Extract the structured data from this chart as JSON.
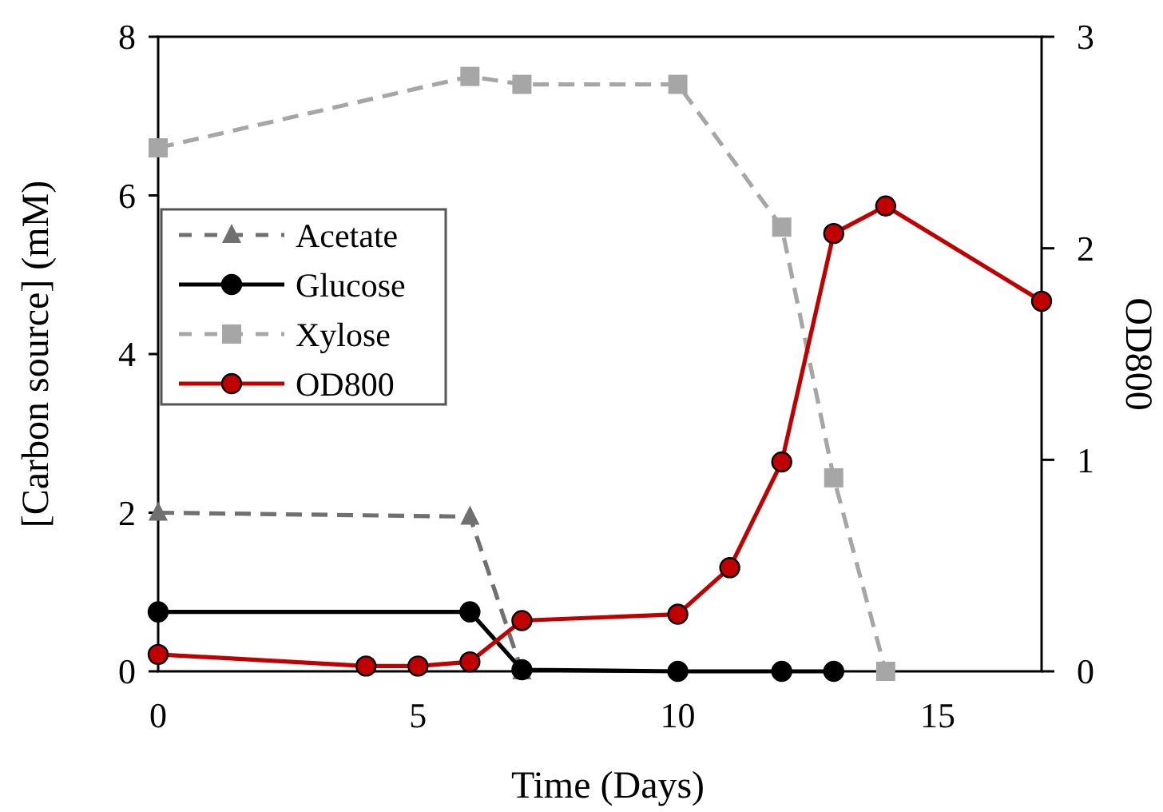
{
  "chart_data": {
    "type": "line",
    "xlabel": "Time (Days)",
    "ylabel": "[Carbon source] (mM)",
    "y2label": "OD800",
    "xlim": [
      0,
      17
    ],
    "xticks": [
      0,
      5,
      10,
      15
    ],
    "ylim": [
      0,
      8
    ],
    "yticks": [
      0,
      2,
      4,
      6,
      8
    ],
    "y2lim": [
      0,
      3
    ],
    "y2ticks": [
      0,
      1,
      2,
      3
    ],
    "grid": false,
    "legend": "left",
    "series": [
      {
        "name": "Acetate",
        "color": "#707070",
        "marker": "triangle",
        "line_style": "dashed",
        "x": [
          0,
          6,
          7
        ],
        "values": [
          2.0,
          1.95,
          0
        ]
      },
      {
        "name": "Glucose",
        "color": "#000000",
        "marker": "circle",
        "line_style": "solid",
        "x": [
          0,
          6,
          7,
          10,
          12,
          13
        ],
        "values": [
          0.75,
          0.75,
          0.02,
          0,
          0,
          0
        ]
      },
      {
        "name": "Xylose",
        "color": "#a6a6a6",
        "marker": "square",
        "line_style": "dashed",
        "x": [
          0,
          6,
          7,
          10,
          12,
          13,
          14
        ],
        "values": [
          6.6,
          7.5,
          7.4,
          7.4,
          5.6,
          2.44,
          0
        ]
      },
      {
        "name": "OD800",
        "color": "#c00000",
        "marker": "circle",
        "line_style": "solid",
        "axis": "y2",
        "x": [
          0,
          4,
          5,
          6,
          7,
          10,
          11,
          12,
          13,
          14,
          17
        ],
        "values": [
          0.08,
          0.025,
          0.025,
          0.045,
          0.24,
          0.27,
          0.49,
          0.99,
          2.07,
          2.2,
          1.75
        ]
      }
    ]
  }
}
